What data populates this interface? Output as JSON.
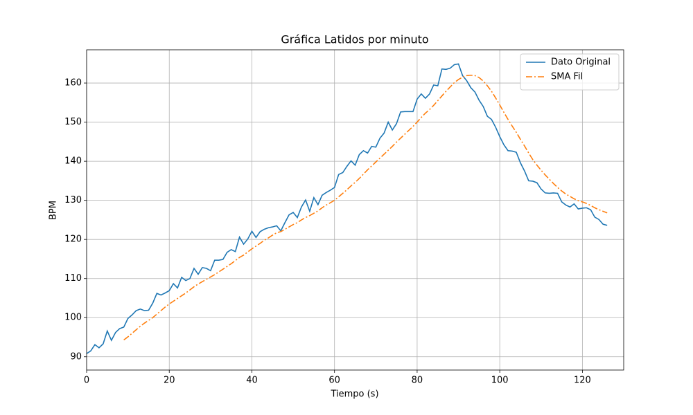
{
  "chart_data": {
    "type": "line",
    "title": "Gráfica Latidos por minuto",
    "x_label": "Tiempo (s)",
    "y_label": "BPM",
    "x": [
      0,
      1,
      2,
      3,
      4,
      5,
      6,
      7,
      8,
      9,
      10,
      11,
      12,
      13,
      14,
      15,
      16,
      17,
      18,
      19,
      20,
      21,
      22,
      23,
      24,
      25,
      26,
      27,
      28,
      29,
      30,
      31,
      32,
      33,
      34,
      35,
      36,
      37,
      38,
      39,
      40,
      41,
      42,
      43,
      44,
      45,
      46,
      47,
      48,
      49,
      50,
      51,
      52,
      53,
      54,
      55,
      56,
      57,
      58,
      59,
      60,
      61,
      62,
      63,
      64,
      65,
      66,
      67,
      68,
      69,
      70,
      71,
      72,
      73,
      74,
      75,
      76,
      77,
      78,
      79,
      80,
      81,
      82,
      83,
      84,
      85,
      86,
      87,
      88,
      89,
      90,
      91,
      92,
      93,
      94,
      95,
      96,
      97,
      98,
      99,
      100,
      101,
      102,
      103,
      104,
      105,
      106,
      107,
      108,
      109,
      110,
      111,
      112,
      113,
      114,
      115,
      116,
      117,
      118,
      119,
      120,
      121,
      122,
      123,
      124,
      125,
      126
    ],
    "series": [
      {
        "name": "Dato Original",
        "color": "#1f77b4",
        "dash": "solid",
        "values": [
          90.8,
          91.5,
          93.1,
          92.3,
          93.3,
          96.6,
          94.2,
          96.2,
          97.2,
          97.6,
          99.8,
          100.7,
          101.8,
          102.2,
          101.8,
          101.9,
          103.7,
          106.2,
          105.8,
          106.3,
          106.9,
          108.7,
          107.6,
          110.3,
          109.5,
          110.0,
          112.6,
          111.1,
          112.8,
          112.6,
          112.0,
          114.7,
          114.7,
          114.9,
          116.7,
          117.4,
          116.9,
          120.6,
          118.8,
          120.1,
          122.1,
          120.5,
          122.0,
          122.6,
          123.0,
          123.2,
          123.5,
          122.2,
          124.3,
          126.3,
          126.9,
          125.6,
          128.3,
          130.1,
          127.2,
          130.7,
          128.9,
          131.3,
          132.0,
          132.6,
          133.3,
          136.6,
          137.1,
          138.7,
          140.1,
          139.0,
          141.7,
          142.7,
          142.1,
          143.8,
          143.6,
          145.9,
          147.2,
          150.0,
          148.0,
          149.6,
          152.6,
          152.7,
          152.7,
          152.7,
          155.9,
          157.2,
          156.1,
          157.2,
          159.5,
          159.3,
          163.6,
          163.5,
          163.8,
          164.7,
          164.9,
          161.9,
          160.6,
          158.8,
          157.7,
          155.6,
          154.0,
          151.5,
          150.7,
          148.7,
          146.3,
          144.2,
          142.7,
          142.6,
          142.3,
          139.6,
          137.5,
          135.0,
          134.9,
          134.5,
          132.9,
          131.9,
          131.8,
          131.9,
          131.8,
          129.6,
          128.8,
          128.3,
          129.1,
          127.8,
          128.0,
          128.1,
          127.6,
          125.7,
          125.1,
          123.9,
          123.6
        ]
      },
      {
        "name": "SMA Fil",
        "color": "#ff7f0e",
        "dash": "dashdot",
        "values": [
          null,
          null,
          null,
          null,
          null,
          null,
          null,
          null,
          null,
          94.3,
          95.1,
          96.0,
          96.9,
          97.8,
          98.6,
          99.3,
          100.0,
          100.9,
          101.8,
          102.7,
          103.5,
          104.2,
          104.9,
          105.6,
          106.3,
          107.1,
          107.9,
          108.6,
          109.2,
          109.8,
          110.4,
          111.0,
          111.7,
          112.4,
          113.1,
          113.8,
          114.6,
          115.4,
          116.0,
          116.8,
          117.6,
          118.3,
          119.0,
          119.8,
          120.4,
          121.1,
          121.7,
          122.0,
          122.6,
          123.2,
          123.8,
          124.3,
          125.0,
          125.6,
          126.1,
          126.7,
          127.3,
          128.1,
          128.8,
          129.4,
          130.0,
          130.9,
          131.8,
          132.7,
          133.7,
          134.6,
          135.6,
          136.7,
          137.8,
          138.8,
          139.8,
          140.8,
          141.8,
          142.8,
          143.8,
          144.9,
          145.9,
          146.9,
          147.9,
          148.9,
          150.0,
          151.2,
          152.3,
          153.2,
          154.3,
          155.5,
          156.7,
          157.9,
          159.0,
          160.1,
          160.9,
          161.5,
          161.9,
          162.0,
          161.9,
          161.4,
          160.5,
          159.3,
          157.9,
          156.2,
          154.4,
          152.5,
          150.7,
          149.0,
          147.4,
          145.6,
          143.9,
          142.1,
          140.4,
          139.0,
          137.7,
          136.5,
          135.4,
          134.3,
          133.3,
          132.4,
          131.6,
          131.0,
          130.4,
          129.9,
          129.6,
          129.2,
          128.7,
          128.1,
          127.6,
          127.2,
          126.8
        ]
      }
    ],
    "xlim": [
      0,
      130
    ],
    "xticks": [
      0,
      20,
      40,
      60,
      80,
      100,
      120
    ],
    "ylim": [
      86.6,
      168.5
    ],
    "yticks": [
      90,
      100,
      110,
      120,
      130,
      140,
      150,
      160
    ],
    "grid": true,
    "legend": "upper right"
  }
}
